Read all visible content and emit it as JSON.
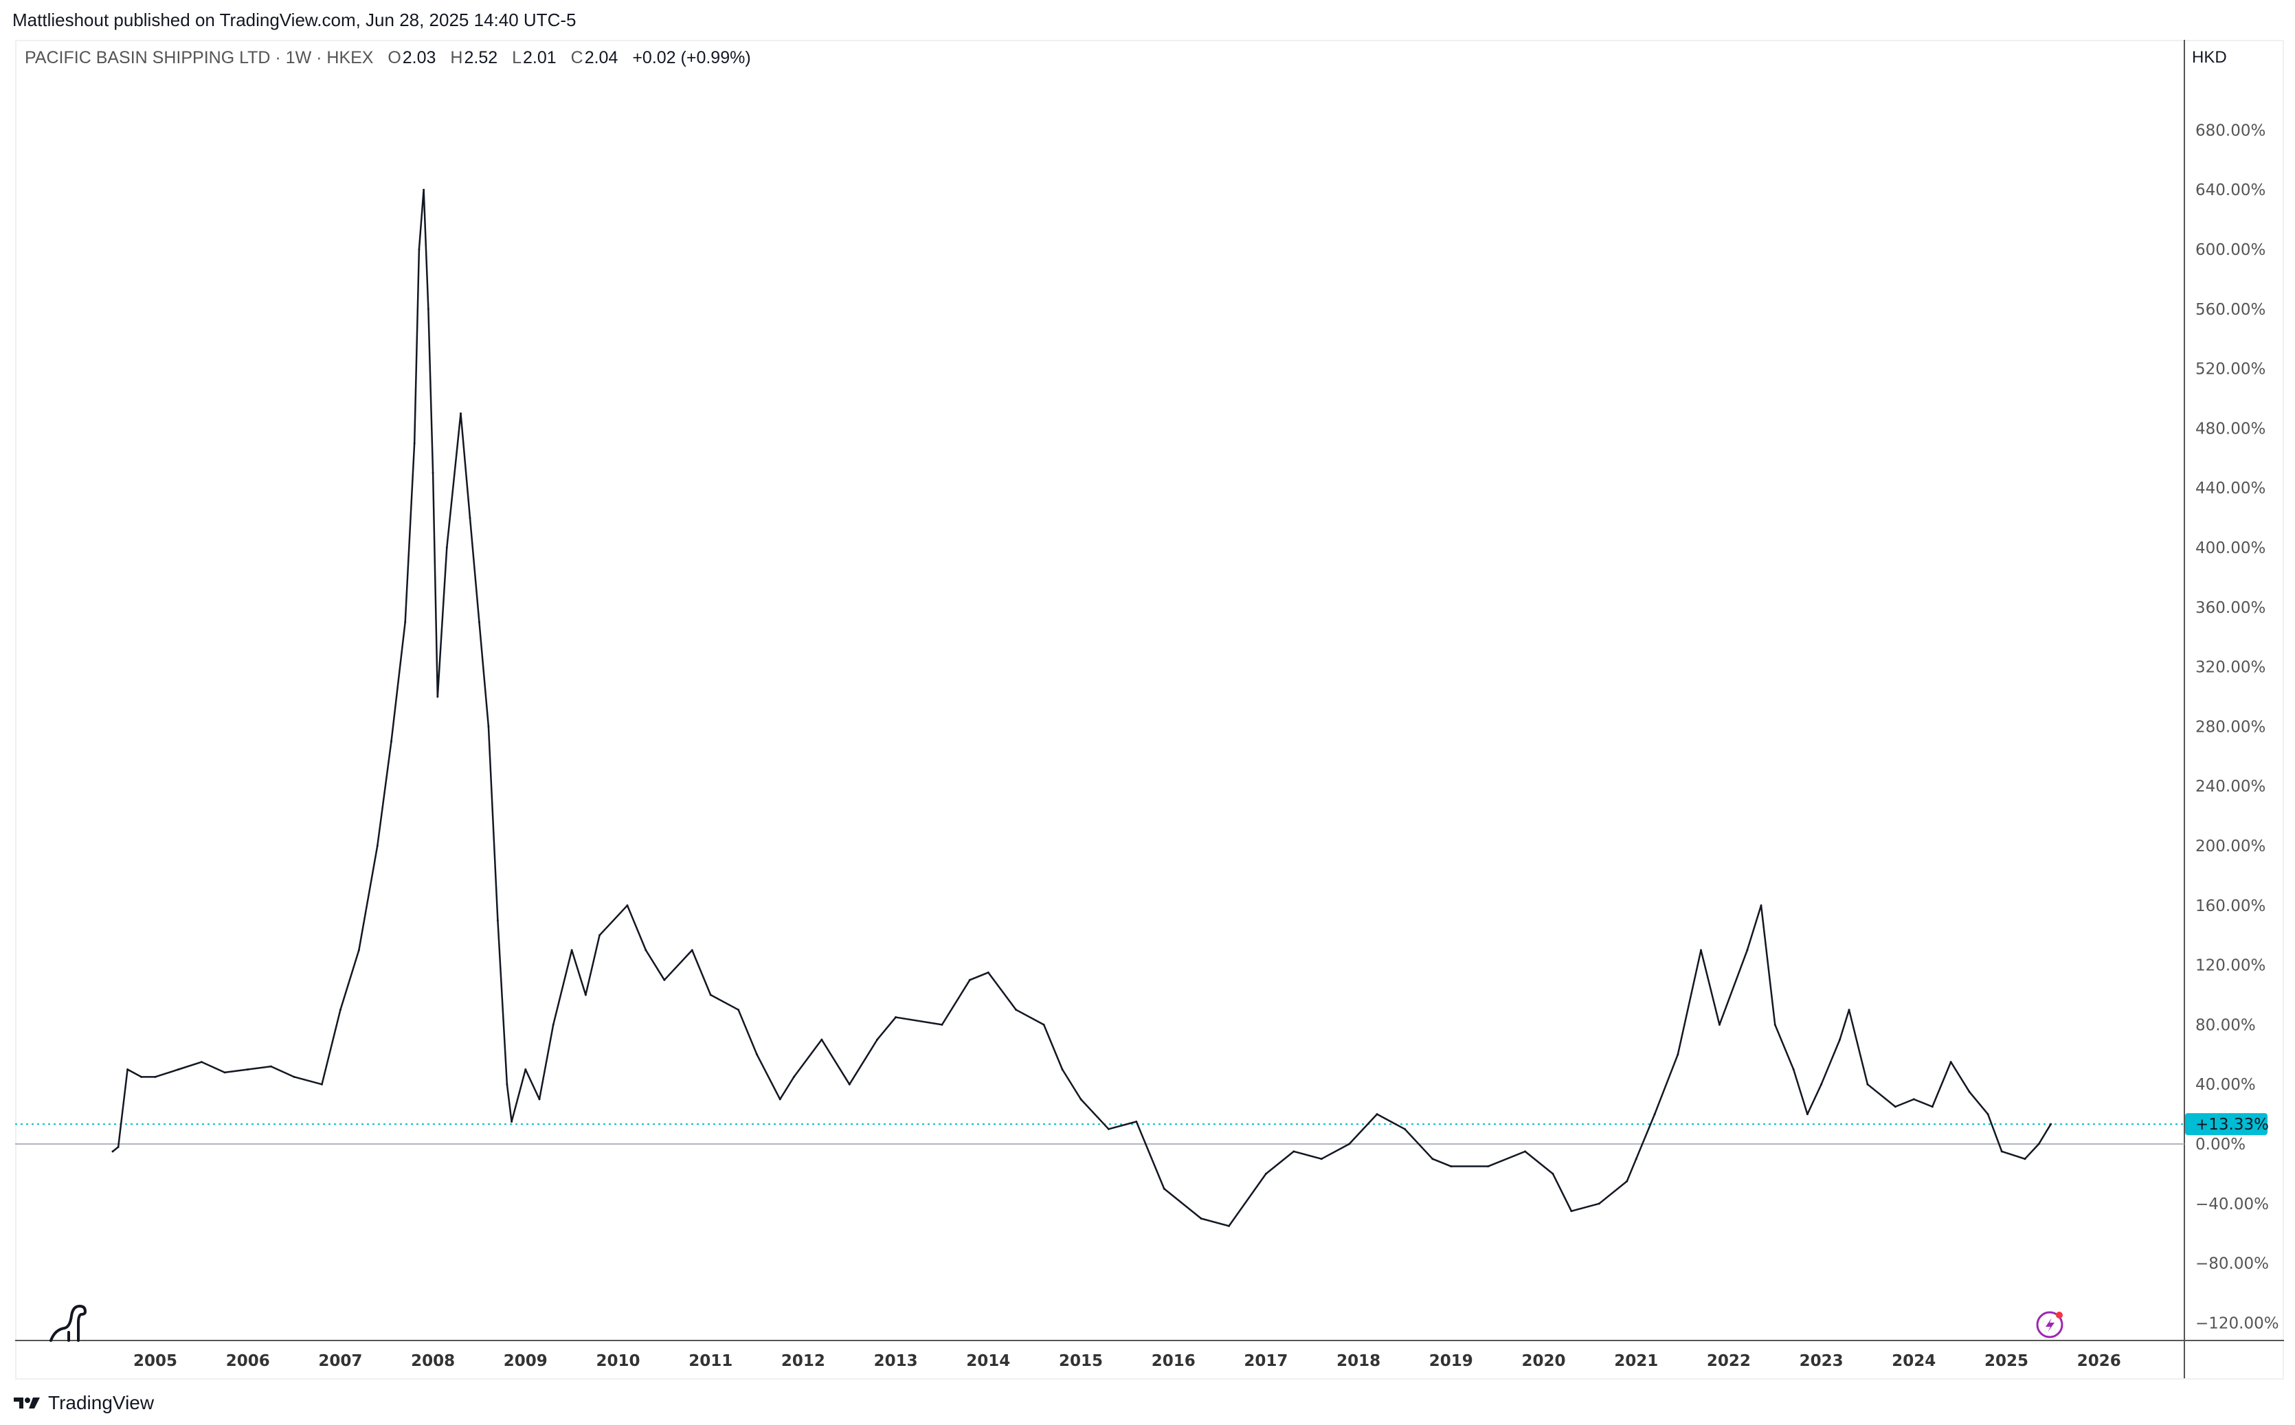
{
  "header": {
    "published": "Mattlieshout published on TradingView.com, Jun 28, 2025 14:40 UTC-5"
  },
  "legend": {
    "symbol": "PACIFIC BASIN SHIPPING LTD · 1W · HKEX",
    "o_label": "O",
    "o": "2.03",
    "h_label": "H",
    "h": "2.52",
    "l_label": "L",
    "l": "2.01",
    "c_label": "C",
    "c": "2.04",
    "change": "+0.02 (+0.99%)"
  },
  "currency": "HKD",
  "footer": {
    "brand": "TradingView"
  },
  "icons": {
    "logo": "dinosaur-icon",
    "lightning": "lightning-icon",
    "brand": "tradingview-logo-icon"
  },
  "colors": {
    "line": "#131722",
    "last_price": "#00bcd4",
    "zero_line": "#b2b5be"
  },
  "chart_data": {
    "type": "line",
    "title": "",
    "ylabel": "",
    "xlabel": "",
    "y_scale": "percent",
    "ylim": [
      -130,
      700
    ],
    "xlim": [
      2004.0,
      2026.8
    ],
    "grid": false,
    "ytick_labels": [
      "680.00%",
      "640.00%",
      "600.00%",
      "560.00%",
      "520.00%",
      "480.00%",
      "440.00%",
      "400.00%",
      "360.00%",
      "320.00%",
      "280.00%",
      "240.00%",
      "200.00%",
      "160.00%",
      "120.00%",
      "80.00%",
      "40.00%",
      "0.00%",
      "−40.00%",
      "−80.00%",
      "−120.00%"
    ],
    "ytick_values": [
      680,
      640,
      600,
      560,
      520,
      480,
      440,
      400,
      360,
      320,
      280,
      240,
      200,
      160,
      120,
      80,
      40,
      0,
      -40,
      -80,
      -120
    ],
    "xtick_labels": [
      "2005",
      "2006",
      "2007",
      "2008",
      "2009",
      "2010",
      "2011",
      "2012",
      "2013",
      "2014",
      "2015",
      "2016",
      "2017",
      "2018",
      "2019",
      "2020",
      "2021",
      "2022",
      "2023",
      "2024",
      "2025",
      "2026"
    ],
    "last_value_label": "+13.33%",
    "last_value": 13.33,
    "x": [
      2004.54,
      2004.6,
      2004.7,
      2004.85,
      2005.0,
      2005.25,
      2005.5,
      2005.75,
      2006.0,
      2006.25,
      2006.5,
      2006.8,
      2007.0,
      2007.2,
      2007.4,
      2007.55,
      2007.7,
      2007.8,
      2007.85,
      2007.9,
      2007.95,
      2008.0,
      2008.05,
      2008.15,
      2008.3,
      2008.4,
      2008.5,
      2008.6,
      2008.7,
      2008.8,
      2008.85,
      2009.0,
      2009.15,
      2009.3,
      2009.5,
      2009.65,
      2009.8,
      2010.1,
      2010.3,
      2010.5,
      2010.8,
      2011.0,
      2011.3,
      2011.5,
      2011.75,
      2011.9,
      2012.2,
      2012.5,
      2012.8,
      2013.0,
      2013.5,
      2013.8,
      2014.0,
      2014.3,
      2014.6,
      2014.8,
      2015.0,
      2015.3,
      2015.6,
      2015.9,
      2016.3,
      2016.6,
      2017.0,
      2017.3,
      2017.6,
      2017.9,
      2018.2,
      2018.5,
      2018.8,
      2019.0,
      2019.4,
      2019.8,
      2020.1,
      2020.3,
      2020.6,
      2020.9,
      2021.0,
      2021.2,
      2021.45,
      2021.7,
      2021.9,
      2022.2,
      2022.35,
      2022.5,
      2022.7,
      2022.85,
      2023.0,
      2023.2,
      2023.3,
      2023.5,
      2023.8,
      2024.0,
      2024.2,
      2024.4,
      2024.6,
      2024.8,
      2024.95,
      2025.2,
      2025.35,
      2025.48
    ],
    "values": [
      -5,
      -2,
      50,
      45,
      45,
      50,
      55,
      48,
      50,
      52,
      45,
      40,
      90,
      130,
      200,
      270,
      350,
      470,
      600,
      640,
      560,
      450,
      300,
      400,
      490,
      420,
      350,
      280,
      150,
      40,
      15,
      50,
      30,
      80,
      130,
      100,
      140,
      160,
      130,
      110,
      130,
      100,
      90,
      60,
      30,
      45,
      70,
      40,
      70,
      85,
      80,
      110,
      115,
      90,
      80,
      50,
      30,
      10,
      15,
      -30,
      -50,
      -55,
      -20,
      -5,
      -10,
      0,
      20,
      10,
      -10,
      -15,
      -15,
      -5,
      -20,
      -45,
      -40,
      -25,
      -10,
      20,
      60,
      130,
      80,
      130,
      160,
      80,
      50,
      20,
      40,
      70,
      90,
      40,
      25,
      30,
      25,
      55,
      35,
      20,
      -5,
      -10,
      0,
      13.33
    ]
  }
}
